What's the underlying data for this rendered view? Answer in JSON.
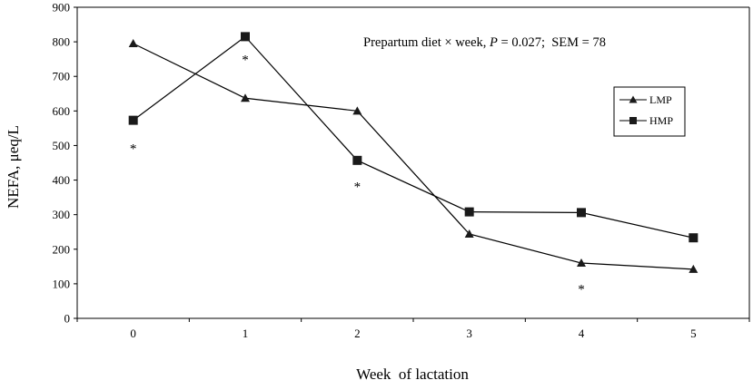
{
  "chart_data": {
    "type": "line",
    "xlabel": "Week  of lactation",
    "ylabel": "NEFA, μeq/L",
    "x": [
      0,
      1,
      2,
      3,
      4,
      5
    ],
    "x_tick_labels": [
      "0",
      "1",
      "2",
      "3",
      "4",
      "5"
    ],
    "ylim": [
      0,
      900
    ],
    "y_ticks": [
      0,
      100,
      200,
      300,
      400,
      500,
      600,
      700,
      800,
      900
    ],
    "y_tick_labels": [
      "0",
      "100",
      "200",
      "300",
      "400",
      "500",
      "600",
      "700",
      "800",
      "900"
    ],
    "series": [
      {
        "name": "LMP",
        "marker": "triangle",
        "values": [
          795,
          637,
          600,
          244,
          160,
          142
        ]
      },
      {
        "name": "HMP",
        "marker": "square",
        "values": [
          573,
          815,
          457,
          308,
          306,
          233
        ]
      }
    ],
    "annotation": {
      "prefix": "Prepartum diet × week, ",
      "p_label": "P",
      "p_value": " = 0.027;  SEM = 78"
    },
    "significance": [
      {
        "x": 0,
        "y": 505,
        "label": "*"
      },
      {
        "x": 1,
        "y": 762,
        "label": "*"
      },
      {
        "x": 2,
        "y": 395,
        "label": "*"
      },
      {
        "x": 4,
        "y": 98,
        "label": "*"
      }
    ],
    "legend_position": "right",
    "grid": false,
    "colors": {
      "line": "#000000",
      "marker": "#1a1a1a",
      "axis": "#000000"
    }
  }
}
